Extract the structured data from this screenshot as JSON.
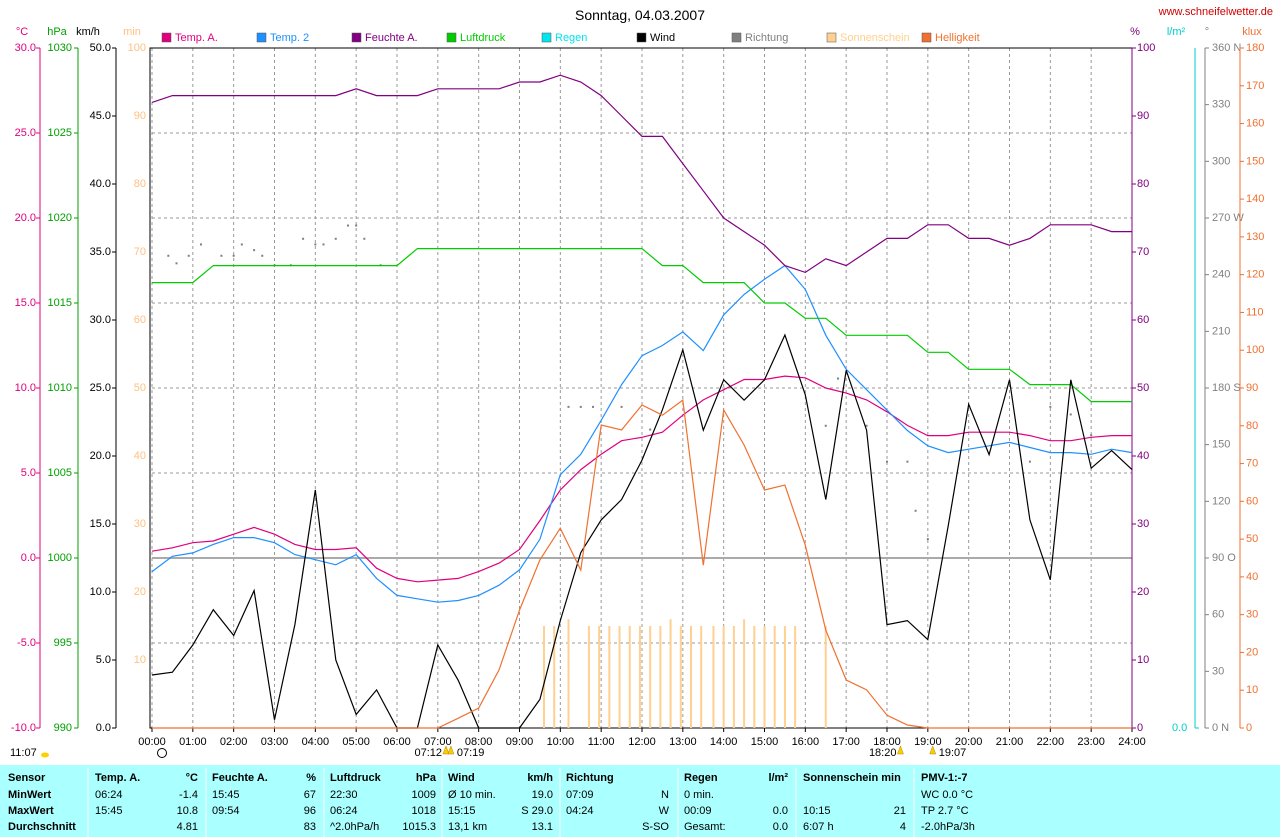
{
  "site": "www.schneifelwetter.de",
  "chart_data": {
    "type": "line",
    "title": "Sonntag, 04.03.2007",
    "xlim": [
      0,
      24
    ],
    "xticks": [
      {
        "value": 0,
        "label": "00:00"
      },
      {
        "value": 1,
        "label": "01:00"
      },
      {
        "value": 2,
        "label": "02:00"
      },
      {
        "value": 3,
        "label": "03:00"
      },
      {
        "value": 4,
        "label": "04:00"
      },
      {
        "value": 5,
        "label": "05:00"
      },
      {
        "value": 6,
        "label": "06:00"
      },
      {
        "value": 7,
        "label": "07:00"
      },
      {
        "value": 8,
        "label": "08:00"
      },
      {
        "value": 9,
        "label": "09:00"
      },
      {
        "value": 10,
        "label": "10:00"
      },
      {
        "value": 11,
        "label": "11:00"
      },
      {
        "value": 12,
        "label": "12:00"
      },
      {
        "value": 13,
        "label": "13:00"
      },
      {
        "value": 14,
        "label": "14:00"
      },
      {
        "value": 15,
        "label": "15:00"
      },
      {
        "value": 16,
        "label": "16:00"
      },
      {
        "value": 17,
        "label": "17:00"
      },
      {
        "value": 18,
        "label": "18:00"
      },
      {
        "value": 19,
        "label": "19:00"
      },
      {
        "value": 20,
        "label": "20:00"
      },
      {
        "value": 21,
        "label": "21:00"
      },
      {
        "value": 22,
        "label": "22:00"
      },
      {
        "value": 23,
        "label": "23:00"
      },
      {
        "value": 24,
        "label": "24:00"
      }
    ],
    "grid": true,
    "axes": [
      {
        "unit": "°C",
        "color": "#e0007f",
        "lim": [
          -10,
          30
        ],
        "ticks": [
          {
            "value": -10,
            "label": "-10.0"
          },
          {
            "value": -5,
            "label": "-5.0"
          },
          {
            "value": 0,
            "label": "0.0"
          },
          {
            "value": 5,
            "label": "5.0"
          },
          {
            "value": 10,
            "label": "10.0"
          },
          {
            "value": 15,
            "label": "15.0"
          },
          {
            "value": 20,
            "label": "20.0"
          },
          {
            "value": 25,
            "label": "25.0"
          },
          {
            "value": 30,
            "label": "30.0"
          }
        ]
      },
      {
        "unit": "hPa",
        "color": "#00a000",
        "lim": [
          990,
          1030
        ],
        "ticks": [
          990,
          995,
          1000,
          1005,
          1010,
          1015,
          1020,
          1025,
          1030
        ]
      },
      {
        "unit": "km/h",
        "color": "#000000",
        "lim": [
          0,
          50
        ],
        "ticks": [
          {
            "value": 0,
            "label": "0.0"
          },
          {
            "value": 5,
            "label": "5.0"
          },
          {
            "value": 10,
            "label": "10.0"
          },
          {
            "value": 15,
            "label": "15.0"
          },
          {
            "value": 20,
            "label": "20.0"
          },
          {
            "value": 25,
            "label": "25.0"
          },
          {
            "value": 30,
            "label": "30.0"
          },
          {
            "value": 35,
            "label": "35.0"
          },
          {
            "value": 40,
            "label": "40.0"
          },
          {
            "value": 45,
            "label": "45.0"
          },
          {
            "value": 50,
            "label": "50.0"
          }
        ]
      },
      {
        "unit": "min",
        "color": "#ffc080",
        "lim": [
          0,
          100
        ],
        "ticks": [
          10,
          20,
          30,
          40,
          50,
          60,
          70,
          80,
          90,
          100
        ]
      },
      {
        "unit": "%",
        "color": "#800080",
        "lim": [
          0,
          100
        ],
        "ticks": [
          0,
          10,
          20,
          30,
          40,
          50,
          60,
          70,
          80,
          90,
          100
        ]
      },
      {
        "unit": "l/m²",
        "color": "#00cccc",
        "lim": [
          0,
          10
        ],
        "ticks": [
          {
            "value": 0,
            "label": "0.0"
          }
        ]
      },
      {
        "unit": "°",
        "color": "#808080",
        "lim": [
          0,
          360
        ],
        "ticks": [
          {
            "value": 0,
            "label": "0 N"
          },
          30,
          60,
          {
            "value": 90,
            "label": "90 O"
          },
          120,
          150,
          {
            "value": 180,
            "label": "180 S"
          },
          210,
          240,
          {
            "value": 270,
            "label": "270 W"
          },
          300,
          330,
          {
            "value": 360,
            "label": "360 N"
          }
        ]
      },
      {
        "unit": "klux",
        "color": "#f07030",
        "lim": [
          0,
          180
        ],
        "ticks": [
          0,
          10,
          20,
          30,
          40,
          50,
          60,
          70,
          80,
          90,
          100,
          110,
          120,
          130,
          140,
          150,
          160,
          170,
          180
        ]
      }
    ],
    "x": [
      0,
      0.5,
      1,
      1.5,
      2,
      2.5,
      3,
      3.5,
      4,
      4.5,
      5,
      5.5,
      6,
      6.5,
      7,
      7.5,
      8,
      8.5,
      9,
      9.5,
      10,
      10.5,
      11,
      11.5,
      12,
      12.5,
      13,
      13.5,
      14,
      14.5,
      15,
      15.5,
      16,
      16.5,
      17,
      17.5,
      18,
      18.5,
      19,
      19.5,
      20,
      20.5,
      21,
      21.5,
      22,
      22.5,
      23,
      23.5,
      24
    ],
    "series": [
      {
        "name": "Temp. A.",
        "type": "line",
        "axis": "°C",
        "color": "#e0007f",
        "values": [
          0.4,
          0.6,
          0.9,
          1.0,
          1.4,
          1.8,
          1.4,
          0.8,
          0.5,
          0.5,
          0.6,
          -0.6,
          -1.2,
          -1.4,
          -1.3,
          -1.2,
          -0.8,
          -0.3,
          0.5,
          2.2,
          4.0,
          5.2,
          6.1,
          6.9,
          7.1,
          7.4,
          8.4,
          9.3,
          9.9,
          10.5,
          10.5,
          10.7,
          10.6,
          10.0,
          9.7,
          9.3,
          8.6,
          7.8,
          7.2,
          7.2,
          7.4,
          7.4,
          7.4,
          7.2,
          6.9,
          6.9,
          7.1,
          7.2,
          7.2
        ]
      },
      {
        "name": "Temp. 2",
        "type": "line",
        "axis": "°C",
        "color": "#1e90ff",
        "values": [
          -0.8,
          0.1,
          0.3,
          0.8,
          1.2,
          1.2,
          0.9,
          0.2,
          -0.1,
          -0.4,
          0.2,
          -1.2,
          -2.2,
          -2.4,
          -2.6,
          -2.5,
          -2.2,
          -1.6,
          -0.7,
          1.1,
          4.9,
          6.1,
          8.1,
          10.2,
          11.9,
          12.5,
          13.3,
          12.2,
          14.3,
          15.5,
          16.4,
          17.2,
          15.8,
          13.1,
          11.1,
          9.9,
          8.7,
          7.5,
          6.6,
          6.2,
          6.4,
          6.6,
          6.8,
          6.5,
          6.2,
          6.2,
          6.1,
          6.4,
          6.2
        ]
      },
      {
        "name": "Feuchte A.",
        "type": "line",
        "axis": "%",
        "color": "#800080",
        "values": [
          92,
          93,
          93,
          93,
          93,
          93,
          93,
          93,
          93,
          93,
          94,
          93,
          93,
          93,
          94,
          94,
          94,
          94,
          95,
          95,
          96,
          95,
          93,
          90,
          87,
          87,
          83,
          79,
          75,
          73,
          71,
          68,
          67,
          69,
          68,
          70,
          72,
          72,
          74,
          74,
          72,
          72,
          71,
          72,
          74,
          74,
          74,
          73,
          73
        ]
      },
      {
        "name": "Luftdruck",
        "type": "line",
        "axis": "hPa",
        "color": "#00cc00",
        "values": [
          1016.2,
          1016.2,
          1016.2,
          1017.2,
          1017.2,
          1017.2,
          1017.2,
          1017.2,
          1017.2,
          1017.2,
          1017.2,
          1017.2,
          1017.2,
          1018.2,
          1018.2,
          1018.2,
          1018.2,
          1018.2,
          1018.2,
          1018.2,
          1018.2,
          1018.2,
          1018.2,
          1018.2,
          1018.2,
          1017.2,
          1017.2,
          1016.2,
          1016.2,
          1016.2,
          1015.0,
          1015.0,
          1014.1,
          1014.1,
          1013.1,
          1013.1,
          1013.1,
          1013.1,
          1012.1,
          1012.1,
          1011.1,
          1011.1,
          1011.1,
          1010.2,
          1010.2,
          1010.2,
          1009.2,
          1009.2,
          1009.2
        ]
      },
      {
        "name": "Regen",
        "type": "line",
        "axis": "l/m²",
        "color": "#00e5ee"
      },
      {
        "name": "Wind",
        "type": "line",
        "axis": "km/h",
        "color": "#000000",
        "values": [
          3.9,
          4.1,
          6.1,
          8.7,
          6.8,
          10.1,
          0.6,
          7.6,
          17.5,
          5.0,
          1.0,
          2.8,
          0,
          0,
          6.1,
          3.5,
          0,
          0,
          0,
          2.1,
          7.9,
          12.9,
          15.3,
          16.8,
          19.7,
          23.4,
          27.8,
          21.9,
          25.6,
          24.1,
          25.6,
          28.9,
          24.5,
          16.8,
          26.3,
          21.9,
          7.6,
          7.9,
          6.5,
          14.9,
          23.8,
          20.1,
          25.6,
          15.3,
          10.9,
          25.6,
          19.1,
          20.4,
          19.0
        ]
      },
      {
        "name": "Richtung",
        "type": "scatter",
        "axis": "°",
        "color": "#808080",
        "x": [
          0.4,
          0.6,
          0.9,
          1.2,
          1.7,
          2,
          2.2,
          2.5,
          2.7,
          3,
          3.4,
          3.7,
          4,
          4.2,
          4.5,
          4.8,
          5,
          5.2,
          5.6,
          10.2,
          10.5,
          10.8,
          11.5,
          12.2,
          16.5,
          16.8,
          17.5,
          18,
          18.5,
          18.7,
          19,
          21.5,
          22,
          22.5,
          23
        ],
        "values": [
          250,
          246,
          250,
          256,
          250,
          250,
          256,
          253,
          250,
          245,
          245,
          259,
          256,
          256,
          259,
          266,
          266,
          259,
          245,
          170,
          170,
          170,
          170,
          158,
          160,
          185,
          160,
          141,
          141,
          115,
          100,
          141,
          170,
          166,
          155
        ]
      },
      {
        "name": "Sonnenschein",
        "type": "bar",
        "axis": "min",
        "color": "#ffd090",
        "x": [
          9.6,
          9.85,
          10.2,
          10.7,
          10.95,
          11.2,
          11.45,
          11.7,
          11.95,
          12.2,
          12.45,
          12.7,
          12.95,
          13.2,
          13.45,
          13.75,
          14,
          14.25,
          14.5,
          14.75,
          15,
          15.25,
          15.5,
          15.75,
          16.5
        ],
        "values": [
          15,
          15,
          16,
          15,
          15,
          15,
          15,
          15,
          15,
          15,
          15,
          16,
          15,
          15,
          15,
          15,
          15,
          15,
          16,
          15,
          15,
          15,
          15,
          15,
          15
        ]
      },
      {
        "name": "Helligkeit",
        "type": "line",
        "axis": "klux",
        "color": "#f07030",
        "values": [
          0,
          0,
          0,
          0,
          0,
          0,
          0,
          0,
          0,
          0,
          0,
          0,
          0,
          0,
          0,
          2.6,
          5.3,
          15.4,
          31.2,
          44.5,
          52.9,
          41.8,
          80.2,
          78.9,
          85.5,
          82.8,
          86.8,
          43.1,
          84.2,
          74.9,
          63.0,
          64.3,
          48.4,
          25.9,
          12.7,
          10.1,
          3.4,
          0.8,
          0,
          0,
          0,
          0,
          0,
          0,
          0,
          0,
          0,
          0,
          0
        ]
      }
    ],
    "annotations": [
      {
        "label": "07:12",
        "x": 7.2
      },
      {
        "label": "07:19",
        "x": 7.32
      },
      {
        "label": "18:20",
        "x": 18.33
      },
      {
        "label": "19:07",
        "x": 19.12
      }
    ],
    "day_length": "11:07"
  },
  "table": {
    "header": [
      {
        "left": "Sensor"
      },
      {
        "left": "Temp. A.",
        "right": "°C"
      },
      {
        "left": "Feuchte A.",
        "right": "%"
      },
      {
        "left": "Luftdruck",
        "right": "hPa"
      },
      {
        "left": "Wind",
        "right": "km/h"
      },
      {
        "left": "Richtung"
      },
      {
        "left": "Regen",
        "right": "l/m²"
      },
      {
        "left": "Sonnenschein min"
      },
      {
        "left": "PMV-1:-7"
      }
    ],
    "rows": [
      {
        "label": "MinWert",
        "cells": [
          {
            "left": "06:24",
            "right": "-1.4"
          },
          {
            "left": "15:45",
            "right": "67"
          },
          {
            "left": "22:30",
            "right": "1009"
          },
          {
            "left": "Ø 10 min.",
            "right": "19.0"
          },
          {
            "left": "07:09",
            "right": "N"
          },
          {
            "left": "0 min."
          },
          null,
          {
            "left": "WC 0.0 °C"
          }
        ]
      },
      {
        "label": "MaxWert",
        "cells": [
          {
            "left": "15:45",
            "right": "10.8"
          },
          {
            "left": "09:54",
            "right": "96"
          },
          {
            "left": "06:24",
            "right": "1018"
          },
          {
            "left": "15:15",
            "right": "S 29.0"
          },
          {
            "left": "04:24",
            "right": "W"
          },
          {
            "left": "00:09",
            "right": "0.0"
          },
          {
            "left": "10:15",
            "right": "21"
          },
          {
            "left": "TP 2.7 °C"
          }
        ]
      },
      {
        "label": "Durchschnitt",
        "cells": [
          {
            "right": "4.81"
          },
          {
            "right": "83"
          },
          {
            "left": "^2.0hPa/h",
            "right": "1015.3"
          },
          {
            "left": "13,1 km",
            "right": "13.1"
          },
          {
            "right": "S-SO"
          },
          {
            "left": "Gesamt:",
            "right": "0.0"
          },
          {
            "left": "6:07 h",
            "right": "4"
          },
          {
            "left": "-2.0hPa/3h"
          }
        ]
      }
    ]
  }
}
